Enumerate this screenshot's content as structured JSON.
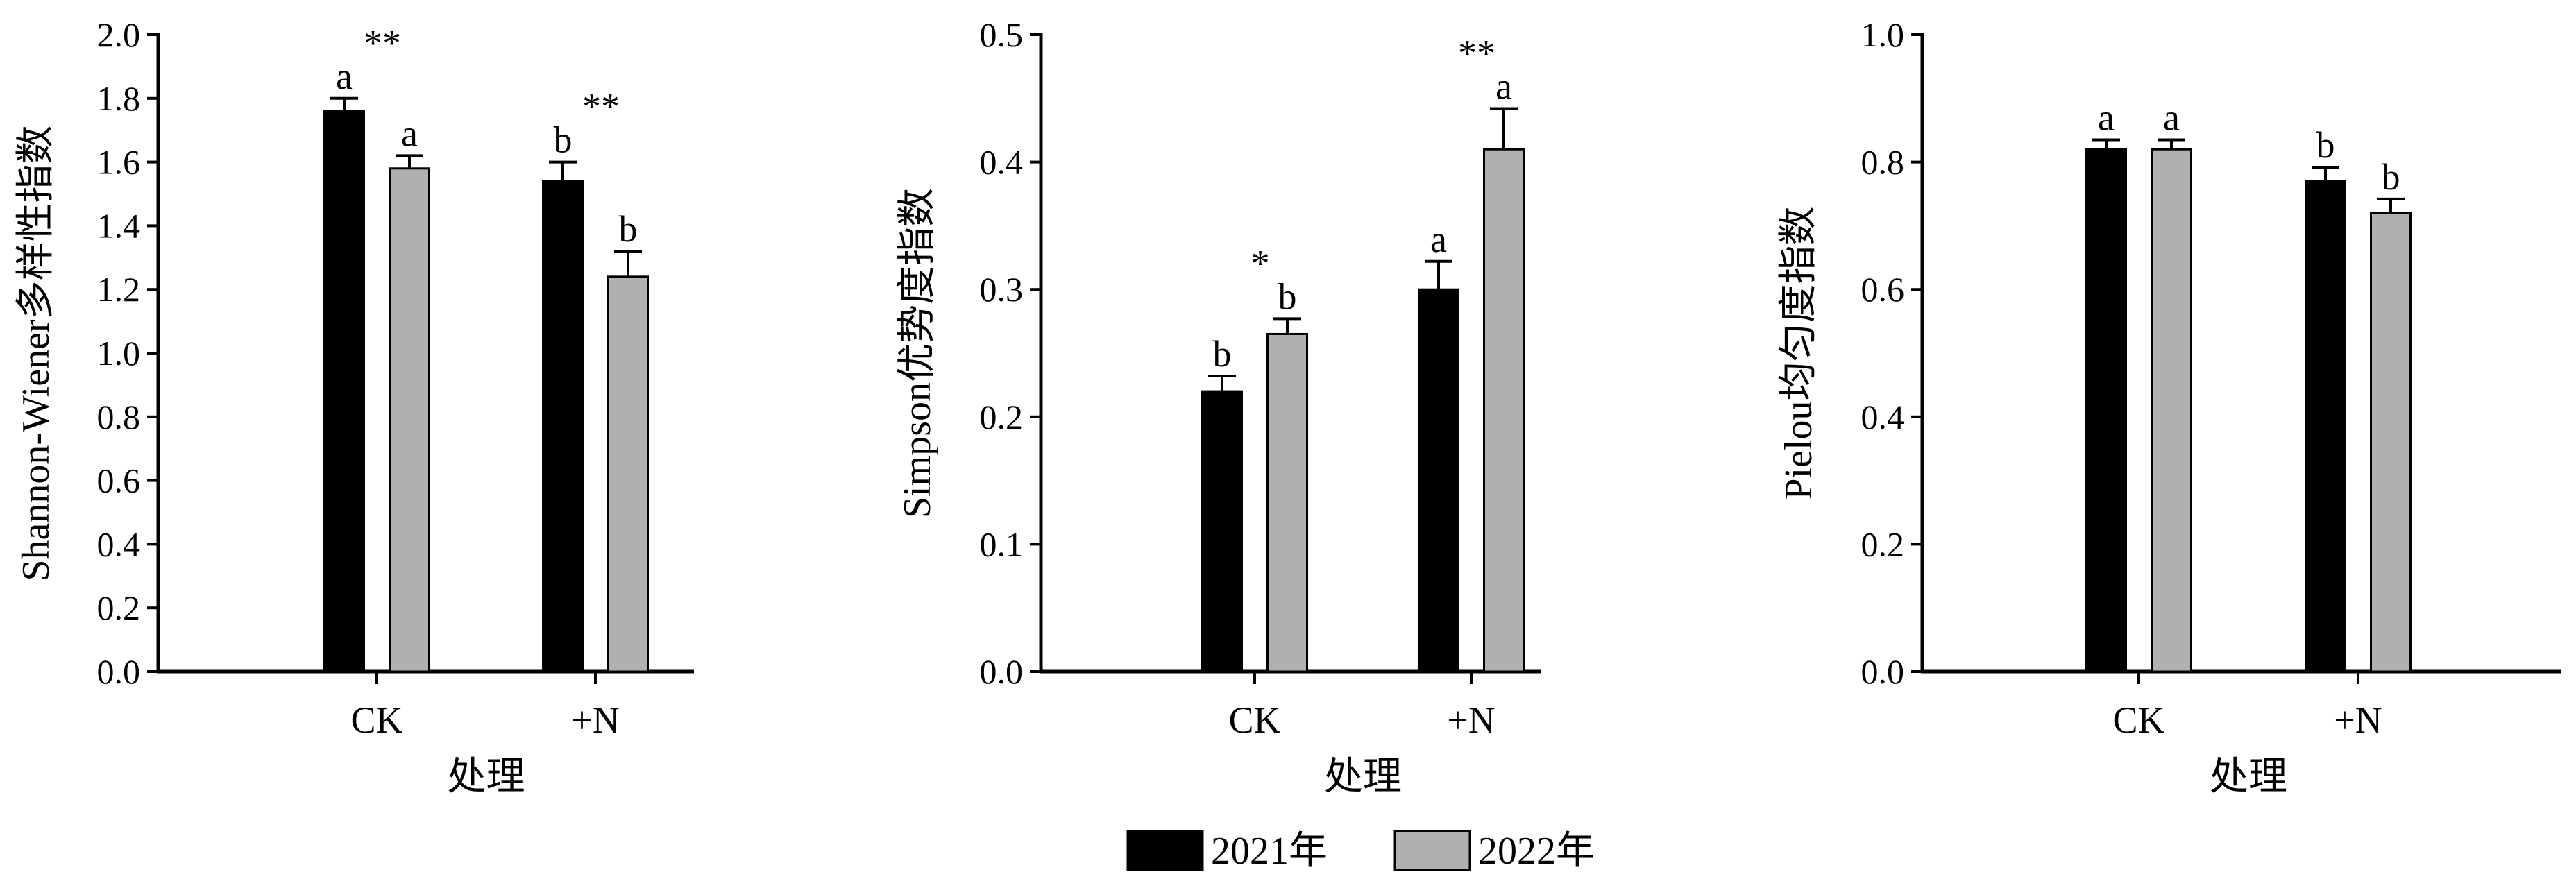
{
  "chart_data": [
    {
      "type": "bar",
      "categories": [
        "CK",
        "+N"
      ],
      "xlabel": "处理",
      "ylabel": "Shannon-Wiener多样性指数",
      "ylim": [
        0,
        2.0
      ],
      "yticks": [
        "0.0",
        "0.2",
        "0.4",
        "0.6",
        "0.8",
        "1.0",
        "1.2",
        "1.4",
        "1.6",
        "1.8",
        "2.0"
      ],
      "series": [
        {
          "name": "2021年",
          "values": [
            1.76,
            1.54
          ],
          "errors": [
            0.04,
            0.06
          ],
          "letters": [
            "a",
            "b"
          ]
        },
        {
          "name": "2022年",
          "values": [
            1.58,
            1.24
          ],
          "errors": [
            0.04,
            0.08
          ],
          "letters": [
            "a",
            "b"
          ]
        }
      ],
      "annotations": [
        {
          "category": "CK",
          "text": "**"
        },
        {
          "category": "+N",
          "text": "**"
        }
      ]
    },
    {
      "type": "bar",
      "categories": [
        "CK",
        "+N"
      ],
      "xlabel": "处理",
      "ylabel": "Simpson优势度指数",
      "ylim": [
        0,
        0.5
      ],
      "yticks": [
        "0.0",
        "0.1",
        "0.2",
        "0.3",
        "0.4",
        "0.5"
      ],
      "series": [
        {
          "name": "2021年",
          "values": [
            0.22,
            0.3
          ],
          "errors": [
            0.012,
            0.022
          ],
          "letters": [
            "b",
            "a"
          ]
        },
        {
          "name": "2022年",
          "values": [
            0.265,
            0.41
          ],
          "errors": [
            0.012,
            0.032
          ],
          "letters": [
            "b",
            "a"
          ]
        }
      ],
      "annotations": [
        {
          "category": "CK",
          "text": "*"
        },
        {
          "category": "+N",
          "text": "**"
        }
      ]
    },
    {
      "type": "bar",
      "categories": [
        "CK",
        "+N"
      ],
      "xlabel": "处理",
      "ylabel": "Pielou均匀度指数",
      "ylim": [
        0,
        1.0
      ],
      "yticks": [
        "0.0",
        "0.2",
        "0.4",
        "0.6",
        "0.8",
        "1.0"
      ],
      "series": [
        {
          "name": "2021年",
          "values": [
            0.82,
            0.77
          ],
          "errors": [
            0.015,
            0.022
          ],
          "letters": [
            "a",
            "b"
          ]
        },
        {
          "name": "2022年",
          "values": [
            0.82,
            0.72
          ],
          "errors": [
            0.015,
            0.022
          ],
          "letters": [
            "a",
            "b"
          ]
        }
      ],
      "annotations": []
    }
  ],
  "legend": [
    {
      "label": "2021年",
      "color": "#000000"
    },
    {
      "label": "2022年",
      "color": "#b0b0b0"
    }
  ],
  "colors": {
    "series_2021": "#000000",
    "series_2022": "#b0b0b0",
    "axis": "#000000"
  }
}
